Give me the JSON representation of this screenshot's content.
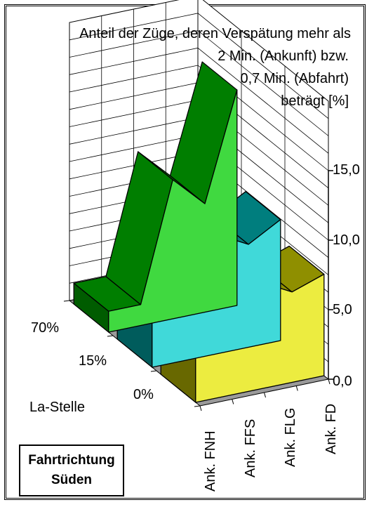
{
  "chart_data": {
    "type": "bar3d",
    "title_lines": [
      "Anteil der Züge, deren Verspätung mehr als",
      "2 Min. (Ankunft) bzw.",
      "0,7 Min. (Abfahrt)",
      "beträgt [%]"
    ],
    "categories": [
      "Ank. FNH",
      "Ank. FFS",
      "Ank. FLG",
      "Ank. FD"
    ],
    "depth_label": "La-Stelle",
    "series": [
      {
        "name": "70%",
        "color": "#00CC00",
        "values": [
          1.5,
          10.0,
          7.8,
          15.5
        ]
      },
      {
        "name": "15%",
        "color": "#00CCCC",
        "values": [
          3.5,
          8.6,
          7.4,
          8.7
        ]
      },
      {
        "name": "0%",
        "color": "#E6E600",
        "values": [
          3.2,
          7.7,
          6.5,
          7.3
        ]
      }
    ],
    "yticks": [
      "0,0",
      "5,0",
      "10,0",
      "15,0"
    ],
    "ylim": [
      0,
      20
    ]
  },
  "direction_box": {
    "line1": "Fahrtrichtung",
    "line2": "Süden"
  }
}
